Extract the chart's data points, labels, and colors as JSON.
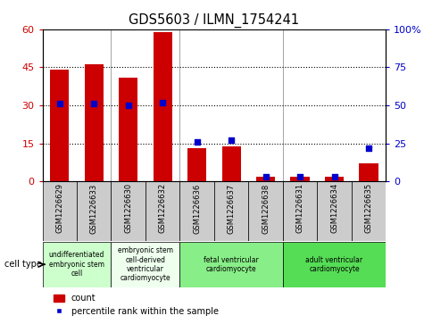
{
  "title": "GDS5603 / ILMN_1754241",
  "samples": [
    "GSM1226629",
    "GSM1226633",
    "GSM1226630",
    "GSM1226632",
    "GSM1226636",
    "GSM1226637",
    "GSM1226638",
    "GSM1226631",
    "GSM1226634",
    "GSM1226635"
  ],
  "counts": [
    44,
    46,
    41,
    59,
    13,
    14,
    2,
    2,
    2,
    7
  ],
  "percentiles": [
    51,
    51,
    50,
    52,
    26,
    27,
    3,
    3,
    3,
    22
  ],
  "ylim_left": [
    0,
    60
  ],
  "ylim_right": [
    0,
    100
  ],
  "yticks_left": [
    0,
    15,
    30,
    45,
    60
  ],
  "yticks_right": [
    0,
    25,
    50,
    75,
    100
  ],
  "ytick_labels_right": [
    "0",
    "25",
    "50",
    "75",
    "100%"
  ],
  "bar_color": "#cc0000",
  "dot_color": "#0000cc",
  "cell_types": [
    {
      "label": "undifferentiated\nembryonic stem\ncell",
      "start": 0,
      "end": 2,
      "color": "#ccffcc"
    },
    {
      "label": "embryonic stem\ncell-derived\nventricular\ncardiomyocyte",
      "start": 2,
      "end": 4,
      "color": "#eeffee"
    },
    {
      "label": "fetal ventricular\ncardiomyocyte",
      "start": 4,
      "end": 7,
      "color": "#88ee88"
    },
    {
      "label": "adult ventricular\ncardiomyocyte",
      "start": 7,
      "end": 10,
      "color": "#55dd55"
    }
  ],
  "bg_color": "#ffffff",
  "tick_col_bg": "#cccccc",
  "group_dividers": [
    1.5,
    3.5,
    6.5
  ]
}
